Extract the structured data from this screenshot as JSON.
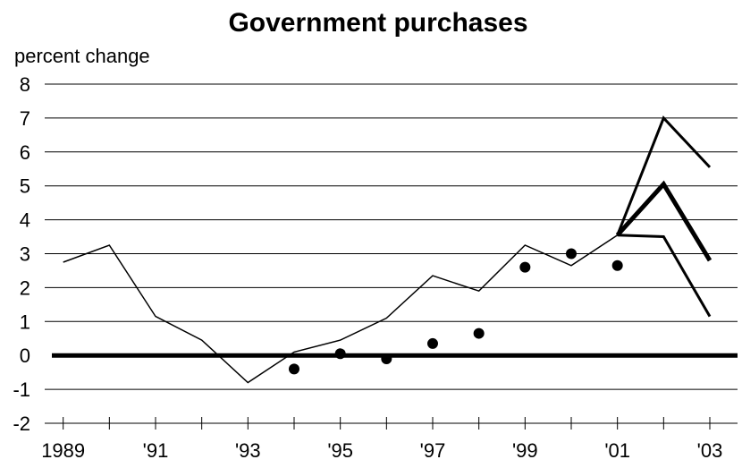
{
  "chart_data": {
    "type": "line",
    "title": "Government purchases",
    "ylabel": "percent change",
    "xlabel": "",
    "ylim": [
      -2,
      8
    ],
    "yticks": [
      -2,
      -1,
      0,
      1,
      2,
      3,
      4,
      5,
      6,
      7,
      8
    ],
    "xlim": [
      1988.6,
      2003.6
    ],
    "xtick_labels": [
      {
        "x": 1989,
        "label": "1989"
      },
      {
        "x": 1991,
        "label": "'91"
      },
      {
        "x": 1993,
        "label": "'93"
      },
      {
        "x": 1995,
        "label": "'95"
      },
      {
        "x": 1997,
        "label": "'97"
      },
      {
        "x": 1999,
        "label": "'99"
      },
      {
        "x": 2001,
        "label": "'01"
      },
      {
        "x": 2003,
        "label": "'03"
      }
    ],
    "grid": true,
    "zero_line": true,
    "series": [
      {
        "style": "thin-line",
        "points": [
          {
            "x": 1989,
            "y": 2.75
          },
          {
            "x": 1990,
            "y": 3.25
          },
          {
            "x": 1991,
            "y": 1.15
          },
          {
            "x": 1992,
            "y": 0.45
          },
          {
            "x": 1993,
            "y": -0.8
          },
          {
            "x": 1994,
            "y": 0.1
          },
          {
            "x": 1995,
            "y": 0.45
          },
          {
            "x": 1996,
            "y": 1.1
          },
          {
            "x": 1997,
            "y": 2.35
          },
          {
            "x": 1998,
            "y": 1.9
          },
          {
            "x": 1999,
            "y": 3.25
          },
          {
            "x": 2000,
            "y": 2.65
          },
          {
            "x": 2001,
            "y": 3.55
          }
        ]
      },
      {
        "style": "dots",
        "points": [
          {
            "x": 1994,
            "y": -0.4
          },
          {
            "x": 1995,
            "y": 0.05
          },
          {
            "x": 1996,
            "y": -0.1
          },
          {
            "x": 1997,
            "y": 0.35
          },
          {
            "x": 1998,
            "y": 0.65
          },
          {
            "x": 1999,
            "y": 2.6
          },
          {
            "x": 2000,
            "y": 3.0
          },
          {
            "x": 2001,
            "y": 2.65
          }
        ]
      },
      {
        "style": "upper-band",
        "points": [
          {
            "x": 2001,
            "y": 3.55
          },
          {
            "x": 2002,
            "y": 7.0
          },
          {
            "x": 2003,
            "y": 5.55
          }
        ]
      },
      {
        "style": "central-forecast",
        "points": [
          {
            "x": 2001,
            "y": 3.55
          },
          {
            "x": 2002,
            "y": 5.05
          },
          {
            "x": 2003,
            "y": 2.8
          }
        ]
      },
      {
        "style": "lower-band",
        "points": [
          {
            "x": 2001,
            "y": 3.55
          },
          {
            "x": 2002,
            "y": 3.5
          },
          {
            "x": 2003,
            "y": 1.15
          }
        ]
      }
    ]
  }
}
